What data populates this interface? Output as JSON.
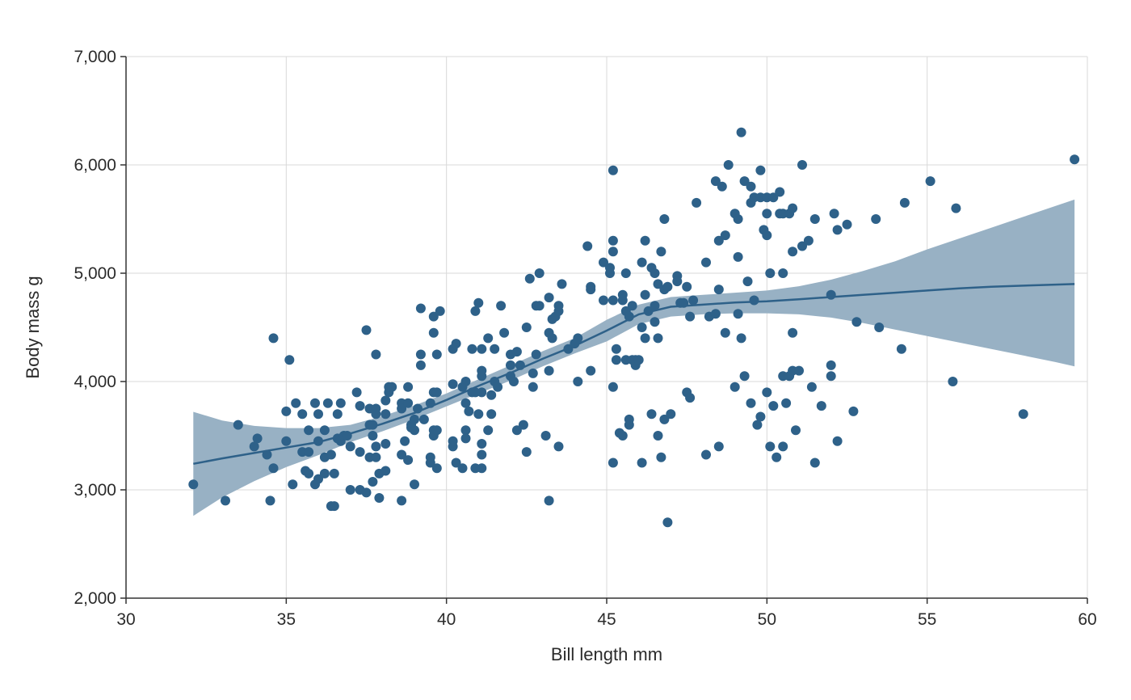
{
  "chart_data": {
    "type": "scatter",
    "title": "",
    "xlabel": "Bill length mm",
    "ylabel": "Body mass g",
    "xlim": [
      30,
      60
    ],
    "ylim": [
      2000,
      7000
    ],
    "x_ticks": [
      30,
      35,
      40,
      45,
      50,
      55,
      60
    ],
    "x_tick_labels": [
      "30",
      "35",
      "40",
      "45",
      "50",
      "55",
      "60"
    ],
    "y_ticks": [
      2000,
      3000,
      4000,
      5000,
      6000,
      7000
    ],
    "y_tick_labels": [
      "2,000",
      "3,000",
      "4,000",
      "5,000",
      "6,000",
      "7,000"
    ],
    "grid": true,
    "colors": {
      "points": "#2e6189",
      "trend": "#2e6189",
      "band": "#98b1c4"
    },
    "points": [
      [
        32.1,
        3050
      ],
      [
        33.1,
        2900
      ],
      [
        33.5,
        3600
      ],
      [
        34.0,
        3400
      ],
      [
        34.1,
        3475
      ],
      [
        34.4,
        3325
      ],
      [
        34.5,
        2900
      ],
      [
        34.6,
        4400
      ],
      [
        34.6,
        3200
      ],
      [
        35.0,
        3450
      ],
      [
        35.0,
        3725
      ],
      [
        35.1,
        4200
      ],
      [
        35.2,
        3050
      ],
      [
        35.3,
        3800
      ],
      [
        35.5,
        3700
      ],
      [
        35.5,
        3350
      ],
      [
        35.6,
        3175
      ],
      [
        35.7,
        3150
      ],
      [
        35.7,
        3550
      ],
      [
        35.7,
        3350
      ],
      [
        35.9,
        3800
      ],
      [
        35.9,
        3050
      ],
      [
        36.0,
        3100
      ],
      [
        36.0,
        3450
      ],
      [
        36.0,
        3700
      ],
      [
        36.2,
        3300
      ],
      [
        36.2,
        3550
      ],
      [
        36.2,
        3150
      ],
      [
        36.3,
        3800
      ],
      [
        36.4,
        3325
      ],
      [
        36.4,
        2850
      ],
      [
        36.5,
        3150
      ],
      [
        36.5,
        2850
      ],
      [
        36.6,
        3475
      ],
      [
        36.6,
        3700
      ],
      [
        36.7,
        3800
      ],
      [
        36.7,
        3450
      ],
      [
        36.8,
        3500
      ],
      [
        36.9,
        3500
      ],
      [
        37.0,
        3000
      ],
      [
        37.0,
        3400
      ],
      [
        37.2,
        3900
      ],
      [
        37.3,
        3775
      ],
      [
        37.3,
        3350
      ],
      [
        37.3,
        3000
      ],
      [
        37.5,
        2975
      ],
      [
        37.5,
        4475
      ],
      [
        37.6,
        3300
      ],
      [
        37.6,
        3600
      ],
      [
        37.6,
        3750
      ],
      [
        37.7,
        3600
      ],
      [
        37.7,
        3500
      ],
      [
        37.7,
        3075
      ],
      [
        37.8,
        4250
      ],
      [
        37.8,
        3700
      ],
      [
        37.8,
        3400
      ],
      [
        37.8,
        3300
      ],
      [
        37.8,
        3750
      ],
      [
        37.9,
        2925
      ],
      [
        37.9,
        3150
      ],
      [
        38.1,
        3700
      ],
      [
        38.1,
        3425
      ],
      [
        38.1,
        3175
      ],
      [
        38.1,
        3825
      ],
      [
        38.2,
        3950
      ],
      [
        38.2,
        3900
      ],
      [
        38.3,
        3950
      ],
      [
        38.6,
        2900
      ],
      [
        38.6,
        3325
      ],
      [
        38.6,
        3800
      ],
      [
        38.6,
        3750
      ],
      [
        38.7,
        3450
      ],
      [
        38.8,
        3275
      ],
      [
        38.8,
        3800
      ],
      [
        38.8,
        3950
      ],
      [
        38.9,
        3600
      ],
      [
        38.9,
        3575
      ],
      [
        39.0,
        3650
      ],
      [
        39.0,
        3550
      ],
      [
        39.0,
        3050
      ],
      [
        39.1,
        3750
      ],
      [
        39.2,
        4675
      ],
      [
        39.2,
        4250
      ],
      [
        39.2,
        4150
      ],
      [
        39.3,
        3650
      ],
      [
        39.5,
        3300
      ],
      [
        39.5,
        3250
      ],
      [
        39.5,
        3800
      ],
      [
        39.6,
        3500
      ],
      [
        39.6,
        4450
      ],
      [
        39.6,
        3550
      ],
      [
        39.6,
        4600
      ],
      [
        39.6,
        3900
      ],
      [
        39.7,
        3900
      ],
      [
        39.7,
        4250
      ],
      [
        39.7,
        3200
      ],
      [
        39.7,
        3550
      ],
      [
        39.8,
        4650
      ],
      [
        40.2,
        4300
      ],
      [
        40.2,
        3400
      ],
      [
        40.2,
        3450
      ],
      [
        40.2,
        3975
      ],
      [
        40.3,
        4350
      ],
      [
        40.3,
        3250
      ],
      [
        40.5,
        3200
      ],
      [
        40.5,
        3950
      ],
      [
        40.6,
        3550
      ],
      [
        40.6,
        3475
      ],
      [
        40.6,
        3800
      ],
      [
        40.6,
        4000
      ],
      [
        40.7,
        3725
      ],
      [
        40.8,
        3900
      ],
      [
        40.8,
        4300
      ],
      [
        40.9,
        4650
      ],
      [
        40.9,
        3200
      ],
      [
        40.9,
        3900
      ],
      [
        41.0,
        3700
      ],
      [
        41.0,
        4725
      ],
      [
        41.1,
        4300
      ],
      [
        41.1,
        3900
      ],
      [
        41.1,
        3425
      ],
      [
        41.1,
        3325
      ],
      [
        41.1,
        4050
      ],
      [
        41.1,
        4100
      ],
      [
        41.1,
        3200
      ],
      [
        41.3,
        3550
      ],
      [
        41.3,
        4400
      ],
      [
        41.4,
        3875
      ],
      [
        41.4,
        3700
      ],
      [
        41.5,
        4000
      ],
      [
        41.5,
        4300
      ],
      [
        41.6,
        3950
      ],
      [
        41.7,
        4700
      ],
      [
        41.8,
        4450
      ],
      [
        42.0,
        4050
      ],
      [
        42.0,
        4150
      ],
      [
        42.0,
        4250
      ],
      [
        42.1,
        4000
      ],
      [
        42.2,
        4275
      ],
      [
        42.2,
        3550
      ],
      [
        42.3,
        4150
      ],
      [
        42.4,
        3600
      ],
      [
        42.5,
        3350
      ],
      [
        42.5,
        4500
      ],
      [
        42.6,
        4950
      ],
      [
        42.7,
        3950
      ],
      [
        42.7,
        4075
      ],
      [
        42.8,
        4250
      ],
      [
        42.8,
        4700
      ],
      [
        42.9,
        4700
      ],
      [
        42.9,
        5000
      ],
      [
        43.1,
        3500
      ],
      [
        43.2,
        4775
      ],
      [
        43.2,
        4100
      ],
      [
        43.2,
        4450
      ],
      [
        43.2,
        2900
      ],
      [
        43.3,
        4400
      ],
      [
        43.3,
        4575
      ],
      [
        43.4,
        4600
      ],
      [
        43.5,
        4650
      ],
      [
        43.5,
        3400
      ],
      [
        43.5,
        4700
      ],
      [
        43.6,
        4900
      ],
      [
        43.8,
        4300
      ],
      [
        44.0,
        4350
      ],
      [
        44.1,
        4000
      ],
      [
        44.1,
        4400
      ],
      [
        44.5,
        4850
      ],
      [
        44.5,
        4875
      ],
      [
        44.5,
        4100
      ],
      [
        44.4,
        5250
      ],
      [
        44.9,
        5100
      ],
      [
        44.9,
        4750
      ],
      [
        45.1,
        5050
      ],
      [
        45.1,
        5000
      ],
      [
        45.2,
        5950
      ],
      [
        45.2,
        5300
      ],
      [
        45.2,
        5200
      ],
      [
        45.2,
        4750
      ],
      [
        45.2,
        3250
      ],
      [
        45.2,
        3950
      ],
      [
        45.3,
        4300
      ],
      [
        45.3,
        4200
      ],
      [
        45.4,
        3525
      ],
      [
        45.5,
        4750
      ],
      [
        45.5,
        4800
      ],
      [
        45.5,
        3500
      ],
      [
        45.6,
        5000
      ],
      [
        45.6,
        4200
      ],
      [
        45.6,
        4650
      ],
      [
        45.7,
        4600
      ],
      [
        45.7,
        3600
      ],
      [
        45.7,
        3650
      ],
      [
        45.8,
        4700
      ],
      [
        45.8,
        4200
      ],
      [
        45.9,
        4150
      ],
      [
        45.9,
        4200
      ],
      [
        46.0,
        4200
      ],
      [
        46.1,
        3250
      ],
      [
        46.1,
        4500
      ],
      [
        46.1,
        5100
      ],
      [
        46.2,
        4800
      ],
      [
        46.2,
        4400
      ],
      [
        46.2,
        5300
      ],
      [
        46.3,
        4650
      ],
      [
        46.4,
        5050
      ],
      [
        46.4,
        3700
      ],
      [
        46.5,
        4700
      ],
      [
        46.5,
        5000
      ],
      [
        46.5,
        4550
      ],
      [
        46.6,
        4400
      ],
      [
        46.6,
        3500
      ],
      [
        46.6,
        4900
      ],
      [
        46.7,
        5200
      ],
      [
        46.7,
        3300
      ],
      [
        46.8,
        4850
      ],
      [
        46.8,
        5500
      ],
      [
        46.8,
        3650
      ],
      [
        46.9,
        4875
      ],
      [
        46.9,
        2700
      ],
      [
        47.0,
        3700
      ],
      [
        47.2,
        4975
      ],
      [
        47.2,
        4925
      ],
      [
        47.3,
        4725
      ],
      [
        47.4,
        4725
      ],
      [
        47.5,
        3900
      ],
      [
        47.5,
        4875
      ],
      [
        47.6,
        4600
      ],
      [
        47.6,
        3850
      ],
      [
        47.7,
        4750
      ],
      [
        47.8,
        5650
      ],
      [
        48.1,
        5100
      ],
      [
        48.1,
        3325
      ],
      [
        48.2,
        4600
      ],
      [
        48.4,
        4625
      ],
      [
        48.4,
        5850
      ],
      [
        48.5,
        4850
      ],
      [
        48.5,
        5300
      ],
      [
        48.5,
        3400
      ],
      [
        48.6,
        5800
      ],
      [
        48.7,
        5350
      ],
      [
        48.7,
        4450
      ],
      [
        48.8,
        6000
      ],
      [
        49.0,
        5550
      ],
      [
        49.0,
        3950
      ],
      [
        49.1,
        5500
      ],
      [
        49.1,
        4625
      ],
      [
        49.1,
        5150
      ],
      [
        49.2,
        6300
      ],
      [
        49.2,
        4400
      ],
      [
        49.3,
        5850
      ],
      [
        49.3,
        4050
      ],
      [
        49.4,
        4925
      ],
      [
        49.5,
        5800
      ],
      [
        49.5,
        5650
      ],
      [
        49.5,
        3800
      ],
      [
        49.6,
        5700
      ],
      [
        49.6,
        4750
      ],
      [
        49.7,
        3600
      ],
      [
        49.8,
        5950
      ],
      [
        49.8,
        5700
      ],
      [
        49.8,
        3675
      ],
      [
        49.9,
        5400
      ],
      [
        50.0,
        5700
      ],
      [
        50.0,
        5350
      ],
      [
        50.0,
        5550
      ],
      [
        50.0,
        3900
      ],
      [
        50.1,
        5000
      ],
      [
        50.1,
        3400
      ],
      [
        50.2,
        5700
      ],
      [
        50.2,
        3775
      ],
      [
        50.3,
        3300
      ],
      [
        50.4,
        5550
      ],
      [
        50.4,
        5750
      ],
      [
        50.5,
        5550
      ],
      [
        50.5,
        4050
      ],
      [
        50.5,
        5000
      ],
      [
        50.5,
        3400
      ],
      [
        50.6,
        3800
      ],
      [
        50.7,
        5550
      ],
      [
        50.7,
        4050
      ],
      [
        50.8,
        5600
      ],
      [
        50.8,
        4450
      ],
      [
        50.8,
        5200
      ],
      [
        50.8,
        4100
      ],
      [
        50.9,
        3550
      ],
      [
        51.0,
        4100
      ],
      [
        51.1,
        6000
      ],
      [
        51.1,
        5250
      ],
      [
        51.3,
        5300
      ],
      [
        51.4,
        3950
      ],
      [
        51.5,
        5500
      ],
      [
        51.5,
        3250
      ],
      [
        51.7,
        3775
      ],
      [
        52.0,
        4800
      ],
      [
        52.0,
        4150
      ],
      [
        52.0,
        4050
      ],
      [
        52.1,
        5550
      ],
      [
        52.2,
        5400
      ],
      [
        52.2,
        3450
      ],
      [
        52.5,
        5450
      ],
      [
        52.7,
        3725
      ],
      [
        52.8,
        4550
      ],
      [
        53.4,
        5500
      ],
      [
        53.5,
        4500
      ],
      [
        54.2,
        4300
      ],
      [
        54.3,
        5650
      ],
      [
        55.1,
        5850
      ],
      [
        55.8,
        4000
      ],
      [
        55.9,
        5600
      ],
      [
        58.0,
        3700
      ],
      [
        59.6,
        6050
      ]
    ],
    "trend": {
      "x": [
        32.1,
        33,
        34,
        35,
        36,
        37,
        38,
        39,
        40,
        41,
        42,
        43,
        44,
        45,
        46,
        47,
        48,
        49,
        50,
        51,
        52,
        53,
        54,
        55,
        56,
        57,
        58,
        59,
        59.6
      ],
      "y": [
        3240,
        3290,
        3340,
        3390,
        3440,
        3520,
        3610,
        3710,
        3830,
        3960,
        4080,
        4210,
        4330,
        4470,
        4620,
        4690,
        4710,
        4730,
        4740,
        4760,
        4780,
        4800,
        4820,
        4840,
        4860,
        4875,
        4885,
        4895,
        4900
      ],
      "lower": [
        2760,
        2930,
        3080,
        3210,
        3320,
        3440,
        3540,
        3650,
        3770,
        3890,
        4010,
        4140,
        4260,
        4370,
        4530,
        4600,
        4620,
        4630,
        4630,
        4620,
        4590,
        4540,
        4480,
        4420,
        4360,
        4300,
        4240,
        4180,
        4140
      ],
      "upper": [
        3720,
        3640,
        3590,
        3570,
        3570,
        3600,
        3680,
        3780,
        3890,
        4020,
        4150,
        4280,
        4400,
        4570,
        4710,
        4780,
        4800,
        4820,
        4840,
        4880,
        4940,
        5020,
        5110,
        5220,
        5320,
        5420,
        5520,
        5620,
        5680
      ]
    }
  }
}
